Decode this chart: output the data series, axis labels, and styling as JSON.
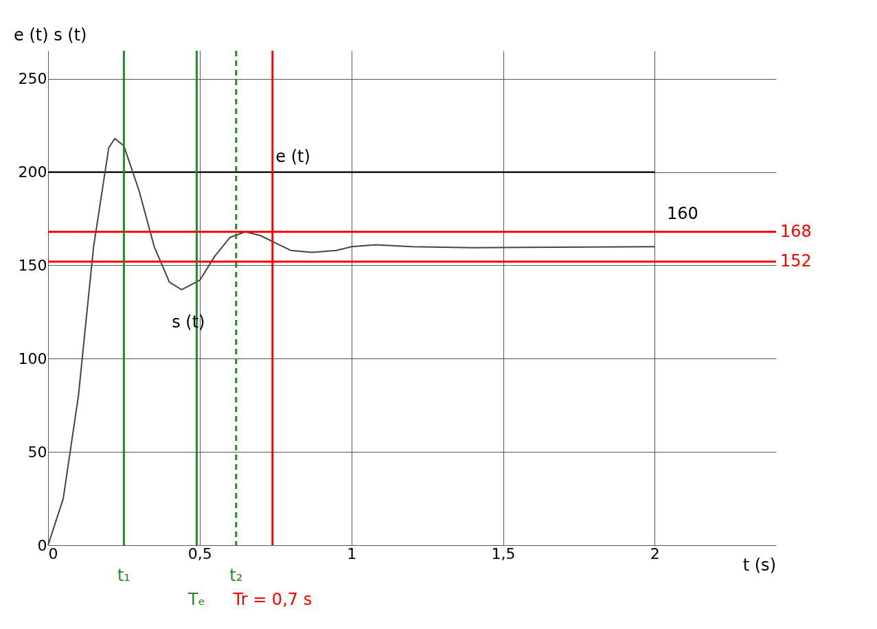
{
  "chart_data": {
    "type": "line",
    "xlabel": "t (s)",
    "ylabel": "e (t) s (t)",
    "xlim": [
      0,
      2.4
    ],
    "ylim": [
      0,
      265
    ],
    "xticks": [
      0,
      {
        "value": 0.5,
        "label": "0,5"
      },
      1,
      {
        "value": 1.5,
        "label": "1,5"
      },
      2
    ],
    "yticks": [
      0,
      50,
      100,
      150,
      200,
      250
    ],
    "grid": true,
    "marker": "none",
    "line_style": "solid",
    "series": [
      {
        "color": "#000000",
        "x": [
          0,
          2
        ],
        "values": [
          200,
          200
        ]
      },
      {
        "color": "#444444",
        "x": [
          0,
          0.05,
          0.1,
          0.15,
          0.2,
          0.22,
          0.25,
          0.3,
          0.35,
          0.4,
          0.44,
          0.5,
          0.55,
          0.6,
          0.65,
          0.7,
          0.75,
          0.8,
          0.87,
          0.95,
          1.0,
          1.08,
          1.2,
          1.4,
          2.0
        ],
        "values": [
          0,
          25,
          80,
          160,
          213,
          218,
          214,
          190,
          160,
          141,
          137,
          142,
          155,
          165,
          168,
          166,
          162,
          158,
          157,
          158,
          160,
          161,
          160,
          159.5,
          160
        ]
      }
    ],
    "ref_lines": [
      {
        "axis": "y",
        "value": 168,
        "label": "168",
        "color": "#ff0000"
      },
      {
        "axis": "y",
        "value": 152,
        "label": "152",
        "color": "#ff0000"
      },
      {
        "axis": "x",
        "value": 0.25,
        "label": "t₁",
        "color": "#228b22"
      },
      {
        "axis": "x",
        "value": 0.49,
        "label": "Tₑ",
        "color": "#228b22"
      },
      {
        "axis": "x",
        "value": 0.62,
        "label": "t₂",
        "color": "#228b22",
        "line_style": "dashed"
      },
      {
        "axis": "x",
        "value": 0.74,
        "label": "Tr = 0,7 s",
        "color": "#ff0000"
      }
    ],
    "annotations": [
      {
        "text": "e (t)",
        "x": 0.75,
        "y": 208
      },
      "s (t)",
      "160"
    ]
  }
}
